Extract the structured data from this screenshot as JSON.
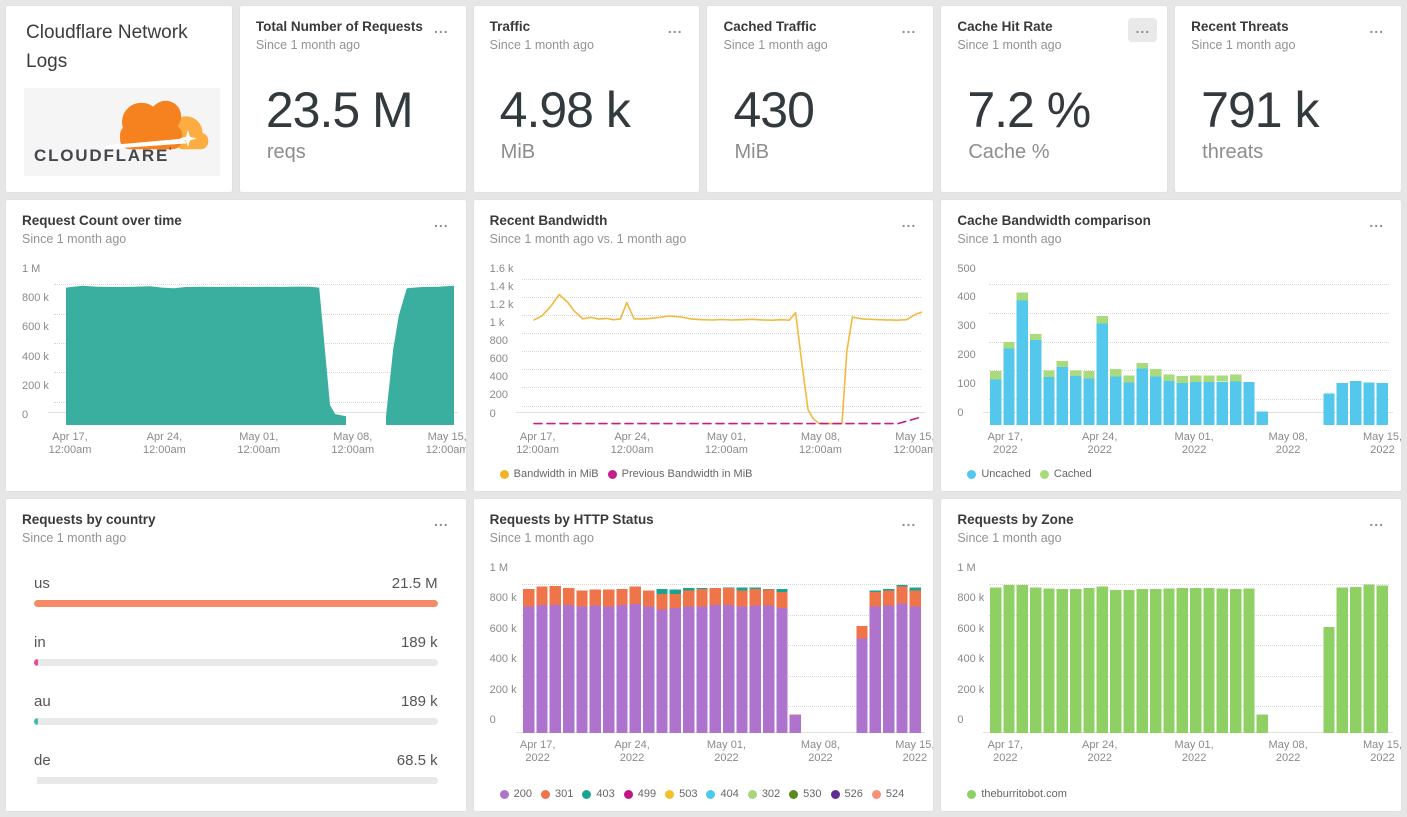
{
  "ui": {
    "menu_ellipsis": "..."
  },
  "logo_panel": {
    "title": "Cloudflare Network Logs",
    "brand": "CLOUDFLARE",
    "brand_tm": "'"
  },
  "stats": [
    {
      "title": "Total Number of Requests",
      "subtitle": "Since 1 month ago",
      "value": "23.5 M",
      "unit": "reqs"
    },
    {
      "title": "Traffic",
      "subtitle": "Since 1 month ago",
      "value": "4.98 k",
      "unit": "MiB"
    },
    {
      "title": "Cached Traffic",
      "subtitle": "Since 1 month ago",
      "value": "430",
      "unit": "MiB"
    },
    {
      "title": "Cache Hit Rate",
      "subtitle": "Since 1 month ago",
      "value": "7.2 %",
      "unit": "Cache %"
    },
    {
      "title": "Recent Threats",
      "subtitle": "Since 1 month ago",
      "value": "791 k",
      "unit": "threats"
    }
  ],
  "chart_data": [
    {
      "type": "area",
      "title": "Request Count over time",
      "subtitle": "Since 1 month ago",
      "color": "#3aaf9f",
      "ymax": 1000000,
      "ybottom": -56000,
      "yticks": [
        {
          "label": "1 M",
          "value": 1000000
        },
        {
          "label": "800 k",
          "value": 800000
        },
        {
          "label": "600 k",
          "value": 600000
        },
        {
          "label": "400 k",
          "value": 400000
        },
        {
          "label": "200 k",
          "value": 200000
        },
        {
          "label": "0",
          "value": 0
        }
      ],
      "grid_mid": [
        900000,
        700000,
        500000,
        300000,
        100000
      ],
      "xticks": [
        {
          "label": "Apr 17,",
          "label2": "12:00am",
          "f": 0.04
        },
        {
          "label": "Apr 24,",
          "label2": "12:00am",
          "f": 0.276
        },
        {
          "label": "May 01,",
          "label2": "12:00am",
          "f": 0.512
        },
        {
          "label": "May 08,",
          "label2": "12:00am",
          "f": 0.747
        },
        {
          "label": "May 15,",
          "label2": "12:00am",
          "f": 0.983
        }
      ],
      "segments": [
        [
          [
            0.03,
            880000
          ],
          [
            0.07,
            893000
          ],
          [
            0.11,
            886000
          ],
          [
            0.16,
            884000
          ],
          [
            0.2,
            886000
          ],
          [
            0.24,
            889000
          ],
          [
            0.27,
            880000
          ],
          [
            0.3,
            876000
          ],
          [
            0.33,
            884000
          ],
          [
            0.37,
            886000
          ],
          [
            0.41,
            884000
          ],
          [
            0.45,
            886000
          ],
          [
            0.49,
            884000
          ],
          [
            0.53,
            886000
          ],
          [
            0.57,
            885000
          ],
          [
            0.61,
            887000
          ],
          [
            0.64,
            886000
          ],
          [
            0.663,
            880000
          ],
          [
            0.69,
            80000
          ],
          [
            0.703,
            18000
          ],
          [
            0.73,
            4000
          ]
        ],
        [
          [
            0.83,
            4000
          ],
          [
            0.848,
            460000
          ],
          [
            0.862,
            690000
          ],
          [
            0.882,
            876000
          ],
          [
            0.92,
            884000
          ],
          [
            0.96,
            886000
          ],
          [
            1.0,
            893000
          ]
        ]
      ]
    },
    {
      "type": "line",
      "title": "Recent Bandwidth",
      "subtitle": "Since 1 month ago vs. 1 month ago",
      "ymax": 1600,
      "ybottom": -110,
      "yticks": [
        {
          "label": "1.6 k",
          "value": 1600
        },
        {
          "label": "1.4 k",
          "value": 1400
        },
        {
          "label": "1.2 k",
          "value": 1200
        },
        {
          "label": "1 k",
          "value": 1000
        },
        {
          "label": "800",
          "value": 800
        },
        {
          "label": "600",
          "value": 600
        },
        {
          "label": "400",
          "value": 400
        },
        {
          "label": "200",
          "value": 200
        },
        {
          "label": "0",
          "value": 0
        }
      ],
      "grid_mid": [
        1500,
        1300,
        1100,
        900,
        700,
        500,
        300,
        100
      ],
      "xticks": [
        {
          "label": "Apr 17,",
          "label2": "12:00am",
          "f": 0.04
        },
        {
          "label": "Apr 24,",
          "label2": "12:00am",
          "f": 0.276
        },
        {
          "label": "May 01,",
          "label2": "12:00am",
          "f": 0.512
        },
        {
          "label": "May 08,",
          "label2": "12:00am",
          "f": 0.747
        },
        {
          "label": "May 15,",
          "label2": "12:00am",
          "f": 0.983
        }
      ],
      "series": [
        {
          "name": "Bandwidth in MiB",
          "color": "#f2b93f",
          "dash": false,
          "points": [
            [
              0.03,
              1050
            ],
            [
              0.05,
              1095
            ],
            [
              0.072,
              1200
            ],
            [
              0.093,
              1330
            ],
            [
              0.115,
              1240
            ],
            [
              0.13,
              1150
            ],
            [
              0.152,
              1060
            ],
            [
              0.172,
              1078
            ],
            [
              0.192,
              1058
            ],
            [
              0.212,
              1066
            ],
            [
              0.228,
              1052
            ],
            [
              0.246,
              1058
            ],
            [
              0.262,
              1240
            ],
            [
              0.28,
              1062
            ],
            [
              0.298,
              1058
            ],
            [
              0.318,
              1064
            ],
            [
              0.342,
              1076
            ],
            [
              0.368,
              1092
            ],
            [
              0.398,
              1082
            ],
            [
              0.424,
              1058
            ],
            [
              0.45,
              1052
            ],
            [
              0.476,
              1048
            ],
            [
              0.5,
              1054
            ],
            [
              0.525,
              1048
            ],
            [
              0.55,
              1052
            ],
            [
              0.575,
              1056
            ],
            [
              0.6,
              1050
            ],
            [
              0.625,
              1046
            ],
            [
              0.648,
              1052
            ],
            [
              0.668,
              1046
            ],
            [
              0.684,
              1130
            ],
            [
              0.7,
              560
            ],
            [
              0.715,
              60
            ],
            [
              0.728,
              -40
            ],
            [
              0.742,
              -90
            ],
            [
              0.76,
              -95
            ],
            [
              0.8,
              -95
            ],
            [
              0.812,
              700
            ],
            [
              0.826,
              1080
            ],
            [
              0.85,
              1060
            ],
            [
              0.88,
              1054
            ],
            [
              0.91,
              1050
            ],
            [
              0.938,
              1046
            ],
            [
              0.962,
              1052
            ],
            [
              0.985,
              1115
            ],
            [
              1.0,
              1135
            ]
          ]
        },
        {
          "name": "Previous Bandwidth in MiB",
          "color": "#c21f88",
          "dash": true,
          "points": [
            [
              0.03,
              -95
            ],
            [
              0.94,
              -95
            ],
            [
              1.0,
              -20
            ]
          ]
        }
      ],
      "legend_items": [
        {
          "name": "Bandwidth in MiB",
          "color": "#f0b429"
        },
        {
          "name": "Previous Bandwidth in MiB",
          "color": "#c21f88"
        }
      ]
    },
    {
      "type": "stacked-bar",
      "title": "Cache Bandwidth comparison",
      "subtitle": "Since 1 month ago",
      "ymax": 500,
      "ybottom": -38,
      "yticks": [
        {
          "label": "500",
          "value": 500
        },
        {
          "label": "400",
          "value": 400
        },
        {
          "label": "300",
          "value": 300
        },
        {
          "label": "200",
          "value": 200
        },
        {
          "label": "100",
          "value": 100
        },
        {
          "label": "0",
          "value": 0
        }
      ],
      "grid_mid": [
        450,
        350,
        250,
        150,
        50
      ],
      "xticks": [
        {
          "label": "Apr 17,",
          "label2": "2022",
          "f": 0.04
        },
        {
          "label": "Apr 24,",
          "label2": "2022",
          "f": 0.276
        },
        {
          "label": "May 01,",
          "label2": "2022",
          "f": 0.512
        },
        {
          "label": "May 08,",
          "label2": "2022",
          "f": 0.747
        },
        {
          "label": "May 15,",
          "label2": "2022",
          "f": 0.983
        }
      ],
      "series": [
        {
          "name": "Uncached",
          "color": "#53c8ec",
          "values": [
            120,
            228,
            395,
            258,
            128,
            163,
            132,
            124,
            315,
            130,
            110,
            158,
            130,
            114,
            107,
            111,
            111,
            112,
            113,
            112,
            8,
            0,
            0,
            0,
            0,
            72,
            108,
            115,
            110,
            108
          ]
        },
        {
          "name": "Cached",
          "color": "#a9da7b",
          "values": [
            30,
            22,
            27,
            20,
            24,
            22,
            20,
            26,
            25,
            26,
            24,
            20,
            26,
            24,
            25,
            23,
            23,
            22,
            25,
            0,
            0,
            0,
            0,
            0,
            0,
            0,
            0,
            0,
            0,
            0
          ]
        }
      ],
      "legend_items": [
        {
          "name": "Uncached",
          "color": "#53c8ec"
        },
        {
          "name": "Cached",
          "color": "#a9da7b"
        }
      ]
    },
    {
      "type": "bar-list",
      "title": "Requests by country",
      "subtitle": "Since 1 month ago",
      "rows": [
        {
          "label": "us",
          "value": "21.5 M",
          "numeric": 21500000,
          "color": "#f58a68"
        },
        {
          "label": "in",
          "value": "189 k",
          "numeric": 189000,
          "color": "#e54b96"
        },
        {
          "label": "au",
          "value": "189 k",
          "numeric": 189000,
          "color": "#3bbfae"
        },
        {
          "label": "de",
          "value": "68.5 k",
          "numeric": 68500,
          "color": "#ffffff"
        }
      ]
    },
    {
      "type": "stacked-bar",
      "title": "Requests by HTTP Status",
      "subtitle": "Since 1 month ago",
      "ymax": 1000000,
      "ybottom": -77000,
      "yticks": [
        {
          "label": "1 M",
          "value": 1000000
        },
        {
          "label": "800 k",
          "value": 800000
        },
        {
          "label": "600 k",
          "value": 600000
        },
        {
          "label": "400 k",
          "value": 400000
        },
        {
          "label": "200 k",
          "value": 200000
        },
        {
          "label": "0",
          "value": 0
        }
      ],
      "grid_mid": [
        900000,
        700000,
        500000,
        300000,
        100000
      ],
      "xticks": [
        {
          "label": "Apr 17,",
          "label2": "2022",
          "f": 0.04
        },
        {
          "label": "Apr 24,",
          "label2": "2022",
          "f": 0.276
        },
        {
          "label": "May 01,",
          "label2": "2022",
          "f": 0.512
        },
        {
          "label": "May 08,",
          "label2": "2022",
          "f": 0.747
        },
        {
          "label": "May 15,",
          "label2": "2022",
          "f": 0.983
        }
      ],
      "series": [
        {
          "name": "200",
          "color": "#ae74cd",
          "values": [
            755000,
            765000,
            765000,
            765000,
            755000,
            760000,
            755000,
            765000,
            770000,
            755000,
            735000,
            745000,
            755000,
            755000,
            765000,
            765000,
            755000,
            760000,
            760000,
            745000,
            40000,
            0,
            0,
            0,
            0,
            545000,
            755000,
            760000,
            775000,
            755000
          ]
        },
        {
          "name": "301",
          "color": "#f0744a",
          "values": [
            115000,
            120000,
            125000,
            110000,
            105000,
            105000,
            110000,
            105000,
            115000,
            105000,
            100000,
            90000,
            105000,
            115000,
            110000,
            110000,
            105000,
            110000,
            105000,
            105000,
            5000,
            0,
            0,
            0,
            0,
            80000,
            95000,
            100000,
            110000,
            105000
          ]
        },
        {
          "name": "403",
          "color": "#1ba392",
          "values": [
            0,
            0,
            0,
            0,
            0,
            0,
            0,
            0,
            0,
            0,
            35000,
            30000,
            15000,
            5000,
            0,
            5000,
            20000,
            10000,
            5000,
            20000,
            0,
            0,
            0,
            0,
            0,
            0,
            10000,
            10000,
            10000,
            20000
          ]
        }
      ],
      "legend_items": [
        {
          "name": "200",
          "color": "#ae74cd"
        },
        {
          "name": "301",
          "color": "#f0744a"
        },
        {
          "name": "403",
          "color": "#1ba392"
        },
        {
          "name": "499",
          "color": "#c2157f"
        },
        {
          "name": "503",
          "color": "#f2c12e"
        },
        {
          "name": "404",
          "color": "#4ec9ee"
        },
        {
          "name": "302",
          "color": "#a5d57c"
        },
        {
          "name": "530",
          "color": "#588a20"
        },
        {
          "name": "526",
          "color": "#5e2f91"
        },
        {
          "name": "524",
          "color": "#f69273"
        }
      ]
    },
    {
      "type": "stacked-bar",
      "title": "Requests by Zone",
      "subtitle": "Since 1 month ago",
      "ymax": 1000000,
      "ybottom": -77000,
      "yticks": [
        {
          "label": "1 M",
          "value": 1000000
        },
        {
          "label": "800 k",
          "value": 800000
        },
        {
          "label": "600 k",
          "value": 600000
        },
        {
          "label": "400 k",
          "value": 400000
        },
        {
          "label": "200 k",
          "value": 200000
        },
        {
          "label": "0",
          "value": 0
        }
      ],
      "grid_mid": [
        900000,
        700000,
        500000,
        300000,
        100000
      ],
      "xticks": [
        {
          "label": "Apr 17,",
          "label2": "2022",
          "f": 0.04
        },
        {
          "label": "Apr 24,",
          "label2": "2022",
          "f": 0.276
        },
        {
          "label": "May 01,",
          "label2": "2022",
          "f": 0.512
        },
        {
          "label": "May 08,",
          "label2": "2022",
          "f": 0.747
        },
        {
          "label": "May 15,",
          "label2": "2022",
          "f": 0.983
        }
      ],
      "series": [
        {
          "name": "theburritobot.com",
          "color": "#8ed063",
          "values": [
            880000,
            895000,
            895000,
            880000,
            872000,
            870000,
            868000,
            875000,
            885000,
            862000,
            862000,
            870000,
            870000,
            872000,
            875000,
            875000,
            875000,
            872000,
            870000,
            872000,
            45000,
            0,
            0,
            0,
            0,
            620000,
            880000,
            882000,
            898000,
            892000
          ]
        }
      ],
      "legend_items": [
        {
          "name": "theburritobot.com",
          "color": "#8ed063"
        }
      ]
    }
  ]
}
